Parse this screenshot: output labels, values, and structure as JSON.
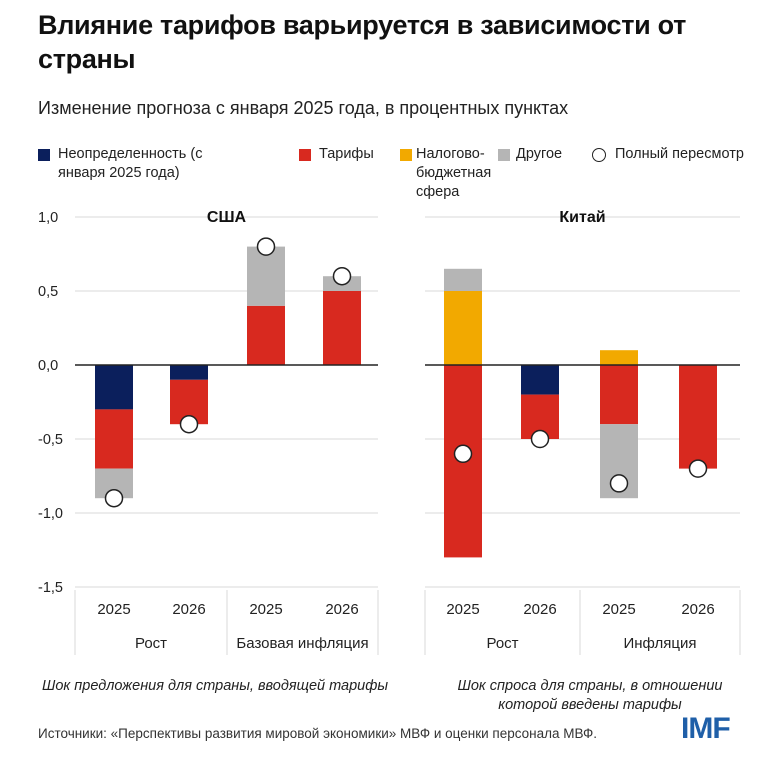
{
  "title": "Влияние тарифов варьируется в зависимости от страны",
  "subtitle": "Изменение прогноза с января 2025 года, в процентных пунктах",
  "legend": {
    "uncertainty": "Неопределенность (с января 2025 года)",
    "tariffs": "Тарифы",
    "fiscal": "Налогово-бюджетная сфера",
    "other": "Другое",
    "full": "Полный пересмотр"
  },
  "colors": {
    "uncertainty": "#0b1f5c",
    "tariffs": "#d8291f",
    "fiscal": "#f2a900",
    "other": "#b5b5b5",
    "grid": "#d9d9d9",
    "zero": "#222222"
  },
  "notes": {
    "left": "Шок предложения для страны, вводящей тарифы",
    "right": "Шок спроса для страны, в отношении которой введены тарифы"
  },
  "source": "Источники: «Перспективы развития мировой экономики» МВФ и оценки персонала МВФ.",
  "logo": "IMF",
  "chart_data": [
    {
      "type": "bar",
      "stacked": true,
      "title": "США",
      "ylim": [
        -1.5,
        1.0
      ],
      "yticks": [
        "1,0",
        "0,5",
        "0,0",
        "-0,5",
        "-1,0",
        "-1,5"
      ],
      "categories": [
        "2025",
        "2026",
        "2025",
        "2026"
      ],
      "groups": [
        "Рост",
        "Базовая инфляция"
      ],
      "series": [
        {
          "name": "Неопределенность (с января 2025 года)",
          "key": "uncertainty",
          "values": [
            -0.3,
            -0.1,
            0,
            0
          ]
        },
        {
          "name": "Тарифы",
          "key": "tariffs",
          "values": [
            -0.4,
            -0.3,
            0.4,
            0.5
          ]
        },
        {
          "name": "Налогово-бюджетная сфера",
          "key": "fiscal",
          "values": [
            0,
            0,
            0,
            0
          ]
        },
        {
          "name": "Другое",
          "key": "other",
          "values": [
            -0.2,
            0,
            0.4,
            0.1
          ]
        }
      ],
      "full_revision": [
        -0.9,
        -0.4,
        0.8,
        0.6
      ]
    },
    {
      "type": "bar",
      "stacked": true,
      "title": "Китай",
      "ylim": [
        -1.5,
        1.0
      ],
      "categories": [
        "2025",
        "2026",
        "2025",
        "2026"
      ],
      "groups": [
        "Рост",
        "Инфляция"
      ],
      "series": [
        {
          "name": "Неопределенность (с января 2025 года)",
          "key": "uncertainty",
          "values": [
            0,
            -0.2,
            0,
            0
          ]
        },
        {
          "name": "Тарифы",
          "key": "tariffs",
          "values": [
            -1.3,
            -0.3,
            -0.4,
            -0.7
          ]
        },
        {
          "name": "Налогово-бюджетная сфера",
          "key": "fiscal",
          "values": [
            0.5,
            0,
            0.1,
            0
          ]
        },
        {
          "name": "Другое",
          "key": "other",
          "values": [
            0.15,
            0,
            -0.5,
            0
          ]
        }
      ],
      "full_revision": [
        -0.6,
        -0.5,
        -0.8,
        -0.7
      ]
    }
  ]
}
